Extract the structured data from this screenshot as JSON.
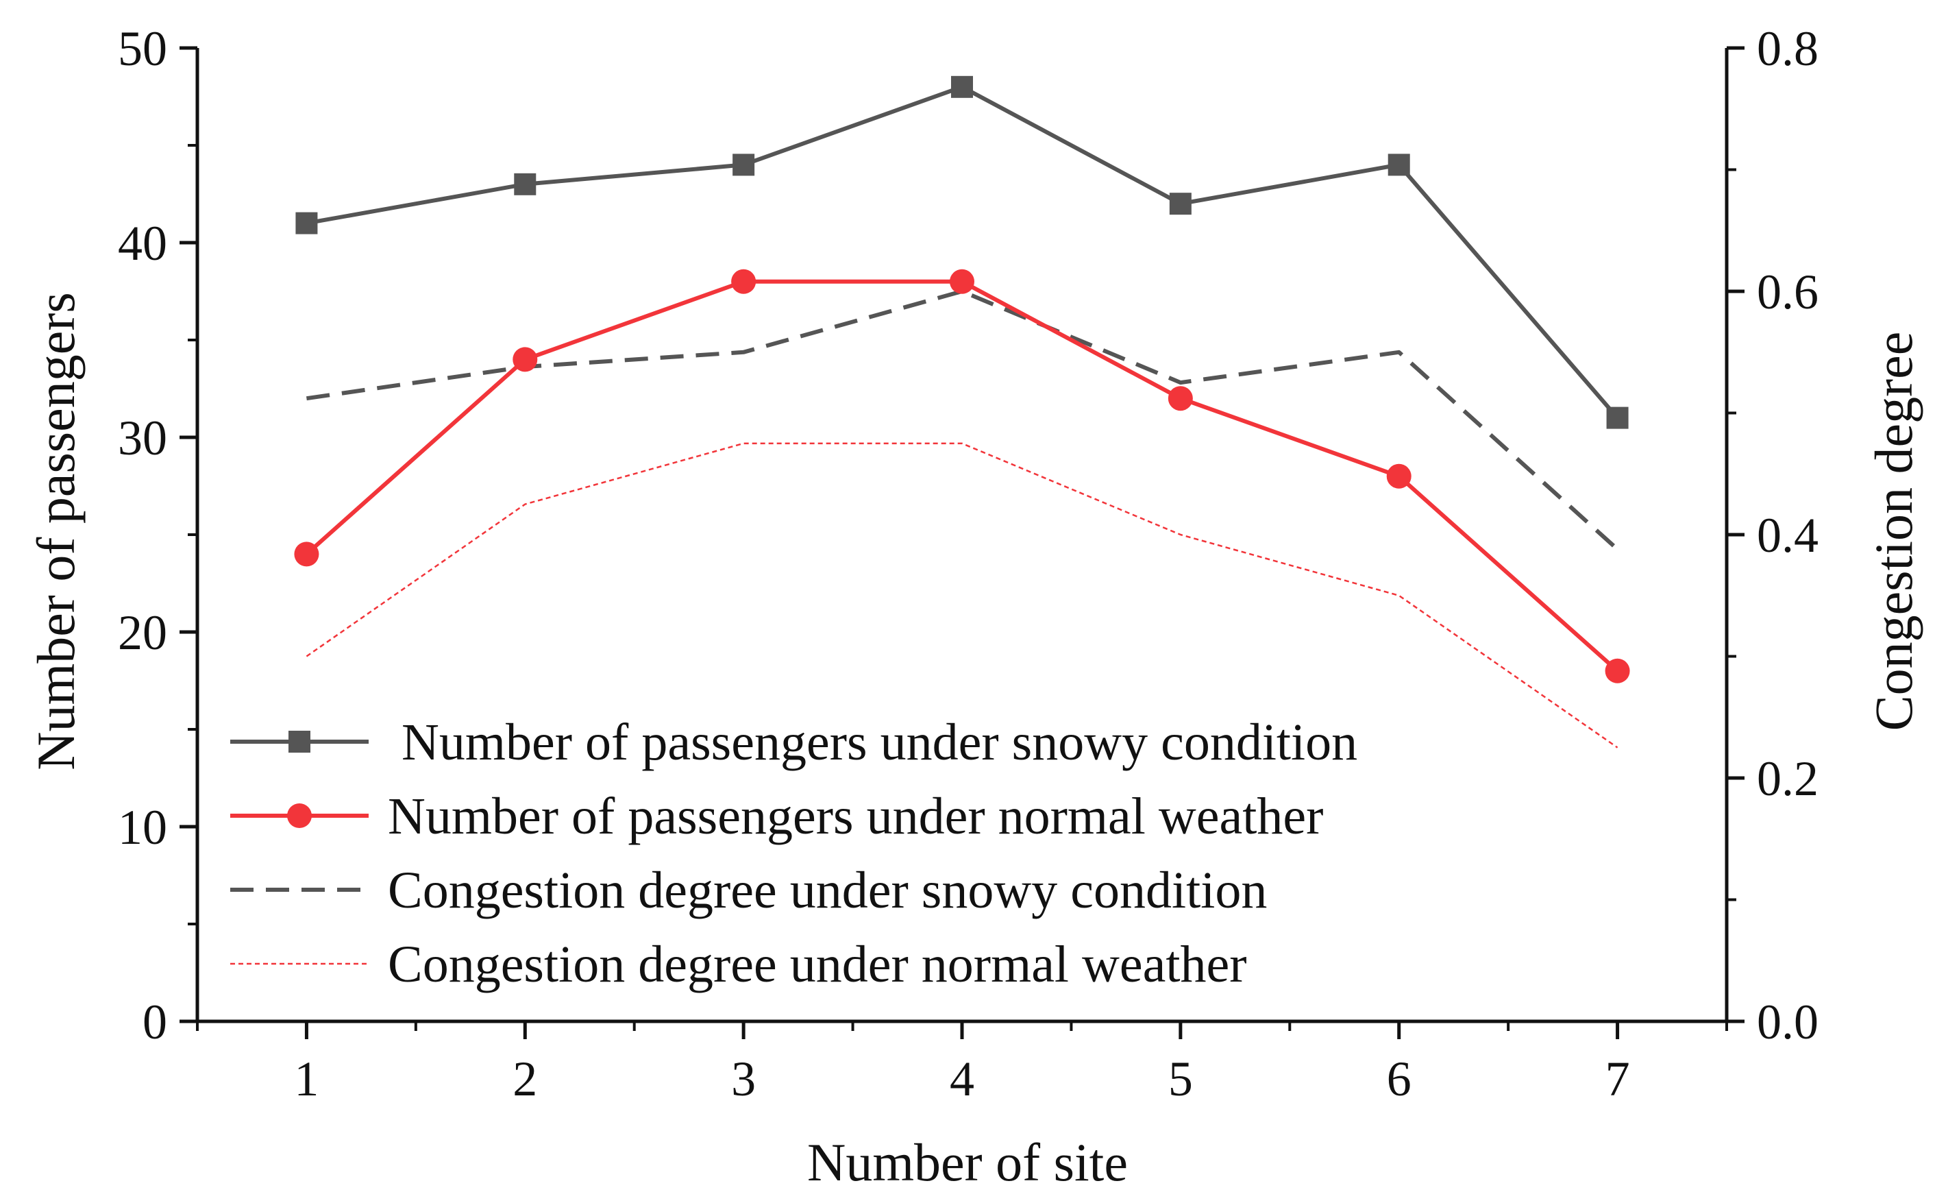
{
  "chart_data": {
    "type": "line",
    "title": "",
    "xlabel": "Number of site",
    "ylabel": "Number of passengers",
    "y2label": "Congestion degree",
    "x": [
      1,
      2,
      3,
      4,
      5,
      6,
      7
    ],
    "xlim": [
      0.5,
      7.5
    ],
    "ylim": [
      0,
      50
    ],
    "y2lim": [
      0.0,
      0.8
    ],
    "xticks": [
      "1",
      "2",
      "3",
      "4",
      "5",
      "6",
      "7"
    ],
    "yticks": [
      "0",
      "10",
      "20",
      "30",
      "40",
      "50"
    ],
    "y2ticks": [
      "0.0",
      "0.2",
      "0.4",
      "0.6",
      "0.8"
    ],
    "grid": false,
    "legend_position": "lower-left",
    "series": [
      {
        "name": "Number of passengers under snowy condition",
        "axis": "left",
        "style": "solid",
        "marker": "square",
        "color": "#555555",
        "values": [
          41,
          43,
          44,
          48,
          42,
          44,
          31
        ]
      },
      {
        "name": "Number of passengers under normal weather",
        "axis": "left",
        "style": "solid",
        "marker": "circle",
        "color": "#f2353a",
        "values": [
          24,
          34,
          38,
          38,
          32,
          28,
          18
        ]
      },
      {
        "name": "Congestion degree under snowy condition",
        "axis": "right",
        "style": "dashed",
        "marker": "none",
        "color": "#555555",
        "values": [
          0.512,
          0.538,
          0.55,
          0.6,
          0.525,
          0.55,
          0.388
        ]
      },
      {
        "name": "Congestion degree under normal weather",
        "axis": "right",
        "style": "dotted",
        "marker": "none",
        "color": "#f2353a",
        "values": [
          0.3,
          0.425,
          0.475,
          0.475,
          0.4,
          0.35,
          0.225
        ]
      }
    ]
  }
}
